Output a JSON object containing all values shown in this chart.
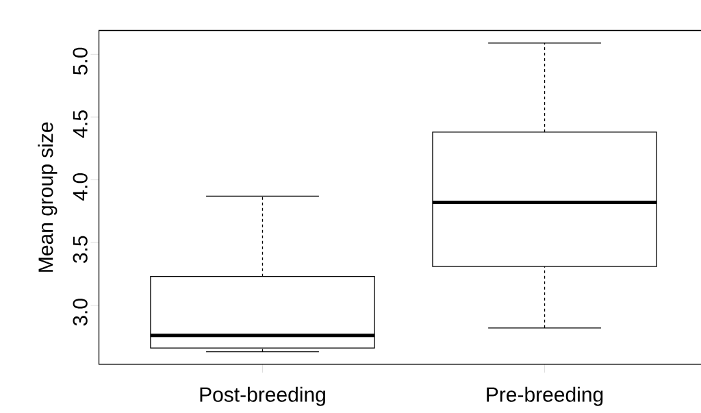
{
  "chart_data": {
    "type": "box",
    "ylabel": "Mean group size",
    "categories": [
      "Post-breeding",
      "Pre-breeding"
    ],
    "boxes": [
      {
        "low": 2.63,
        "q1": 2.66,
        "median": 2.76,
        "q3": 3.23,
        "high": 3.87
      },
      {
        "low": 2.82,
        "q1": 3.31,
        "median": 3.82,
        "q3": 4.38,
        "high": 5.09
      }
    ],
    "ylim": [
      2.53,
      5.19
    ],
    "yticks": [
      {
        "value": 3.0,
        "label": "3.0"
      },
      {
        "value": 3.5,
        "label": "3.5"
      },
      {
        "value": 4.0,
        "label": "4.0"
      },
      {
        "value": 4.5,
        "label": "4.5"
      },
      {
        "value": 5.0,
        "label": "5.0"
      }
    ],
    "grid": false
  }
}
